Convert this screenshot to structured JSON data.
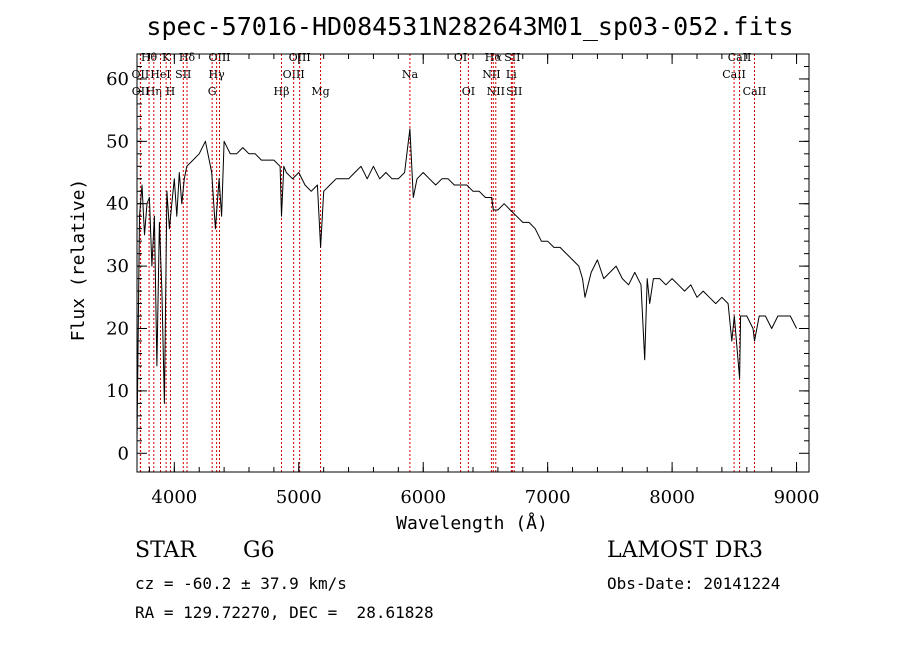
{
  "chart_data": {
    "type": "line",
    "title": "spec-57016-HD084531N282643M01_sp03-052.fits",
    "xlabel": "Wavelength (Å)",
    "ylabel": "Flux (relative)",
    "xlim": [
      3700,
      9100
    ],
    "ylim": [
      -3,
      64
    ],
    "xticks": [
      4000,
      5000,
      6000,
      7000,
      8000,
      9000
    ],
    "yticks": [
      0,
      10,
      20,
      30,
      40,
      50,
      60
    ],
    "series": [
      {
        "x": [
          3700,
          3720,
          3740,
          3760,
          3780,
          3800,
          3820,
          3840,
          3860,
          3880,
          3900,
          3920,
          3940,
          3960,
          3980,
          4000,
          4020,
          4040,
          4060,
          4080,
          4100,
          4150,
          4200,
          4250,
          4300,
          4330,
          4360,
          4380,
          4400,
          4450,
          4500,
          4550,
          4600,
          4650,
          4700,
          4750,
          4800,
          4850,
          4861,
          4880,
          4900,
          4950,
          5000,
          5050,
          5100,
          5150,
          5175,
          5200,
          5250,
          5300,
          5350,
          5400,
          5450,
          5500,
          5550,
          5600,
          5650,
          5700,
          5750,
          5800,
          5850,
          5893,
          5920,
          5950,
          6000,
          6050,
          6100,
          6150,
          6200,
          6250,
          6300,
          6350,
          6400,
          6450,
          6500,
          6550,
          6563,
          6600,
          6650,
          6700,
          6750,
          6800,
          6850,
          6900,
          6950,
          7000,
          7050,
          7100,
          7150,
          7200,
          7250,
          7280,
          7300,
          7350,
          7400,
          7450,
          7500,
          7550,
          7600,
          7650,
          7700,
          7750,
          7780,
          7800,
          7820,
          7850,
          7900,
          7950,
          8000,
          8050,
          8100,
          8150,
          8200,
          8250,
          8300,
          8350,
          8400,
          8450,
          8480,
          8500,
          8542,
          8550,
          8600,
          8650,
          8662,
          8700,
          8750,
          8800,
          8850,
          8900,
          8950,
          9000
        ],
        "y": [
          2,
          38,
          43,
          35,
          40,
          41,
          30,
          38,
          14,
          37,
          26,
          8,
          42,
          36,
          40,
          44,
          38,
          45,
          40,
          44,
          46,
          47,
          48,
          50,
          45,
          36,
          44,
          38,
          50,
          48,
          48,
          49,
          48,
          48,
          47,
          47,
          47,
          46,
          38,
          46,
          45,
          44,
          45,
          43,
          42,
          43,
          33,
          42,
          43,
          44,
          44,
          44,
          45,
          46,
          44,
          46,
          44,
          45,
          44,
          44,
          45,
          52,
          41,
          44,
          45,
          44,
          43,
          44,
          44,
          43,
          43,
          43,
          42,
          42,
          41,
          41,
          39,
          39,
          40,
          39,
          38,
          37,
          37,
          36,
          34,
          34,
          33,
          33,
          32,
          31,
          30,
          28,
          25,
          29,
          31,
          28,
          29,
          30,
          28,
          27,
          29,
          27,
          15,
          28,
          24,
          28,
          28,
          27,
          28,
          27,
          26,
          27,
          25,
          26,
          25,
          24,
          25,
          24,
          18,
          22,
          12,
          22,
          22,
          20,
          18,
          22,
          22,
          20,
          22,
          22,
          22,
          20
        ]
      }
    ],
    "spectral_lines": [
      {
        "label": "Hθ",
        "x": 3797,
        "row": 0
      },
      {
        "label": "OII",
        "x": 3727,
        "row": 1
      },
      {
        "label": "OII",
        "x": 3729,
        "row": 2
      },
      {
        "label": "K",
        "x": 3934,
        "row": 0
      },
      {
        "label": "HeI",
        "x": 3889,
        "row": 1
      },
      {
        "label": "Hη",
        "x": 3835,
        "row": 2
      },
      {
        "label": "Hδ",
        "x": 4102,
        "row": 0
      },
      {
        "label": "SII",
        "x": 4072,
        "row": 1
      },
      {
        "label": "H",
        "x": 3969,
        "row": 2
      },
      {
        "label": "OIII",
        "x": 4363,
        "row": 0
      },
      {
        "label": "Hγ",
        "x": 4340,
        "row": 1
      },
      {
        "label": "G",
        "x": 4304,
        "row": 2
      },
      {
        "label": "Hβ",
        "x": 4861,
        "row": 2
      },
      {
        "label": "OIII",
        "x": 5007,
        "row": 0
      },
      {
        "label": "OIII",
        "x": 4959,
        "row": 1
      },
      {
        "label": "Mg",
        "x": 5175,
        "row": 2
      },
      {
        "label": "Na",
        "x": 5893,
        "row": 1
      },
      {
        "label": "OI",
        "x": 6300,
        "row": 0
      },
      {
        "label": "OI",
        "x": 6363,
        "row": 2
      },
      {
        "label": "Hα",
        "x": 6563,
        "row": 0
      },
      {
        "label": "NII",
        "x": 6548,
        "row": 1
      },
      {
        "label": "NII",
        "x": 6583,
        "row": 2
      },
      {
        "label": "SII",
        "x": 6716,
        "row": 0
      },
      {
        "label": "Li",
        "x": 6708,
        "row": 1
      },
      {
        "label": "SII",
        "x": 6731,
        "row": 2
      },
      {
        "label": "CaII",
        "x": 8542,
        "row": 0
      },
      {
        "label": "CaII",
        "x": 8498,
        "row": 1
      },
      {
        "label": "CaII",
        "x": 8662,
        "row": 2
      }
    ]
  },
  "info": {
    "object_class": "STAR",
    "subclass": "G6",
    "survey": "LAMOST DR3",
    "cz": "cz = -60.2 ± 37.9 km/s",
    "obs_date": "Obs-Date: 20141224",
    "coords": "RA = 129.72270, DEC =  28.61828"
  }
}
